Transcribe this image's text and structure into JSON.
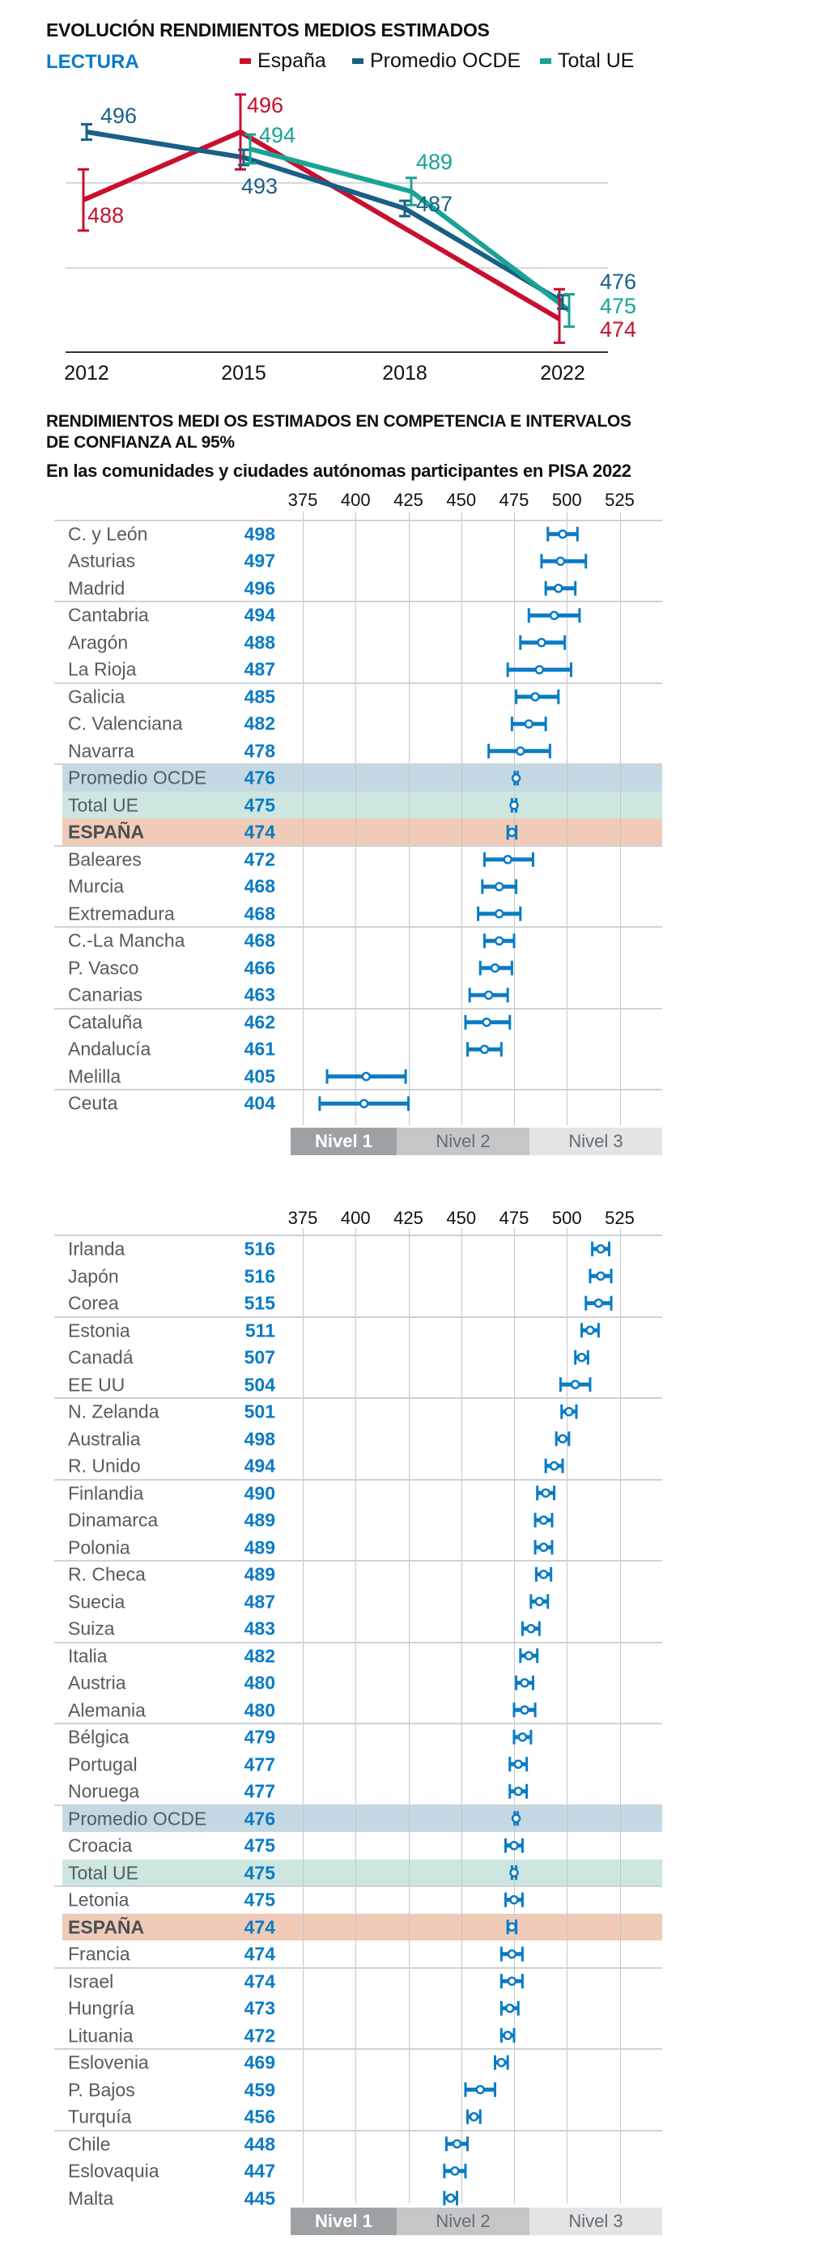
{
  "colors": {
    "spain": "#c8102e",
    "ocde": "#1a5f86",
    "ue": "#1aa394",
    "value_blue": "#0a7cc4",
    "band_ocde": "#c5d9e4",
    "band_ue": "#cde6e0",
    "band_spain": "#f0cbb8"
  },
  "levels": [
    "Nivel 1",
    "Nivel 2",
    "Nivel 3"
  ],
  "chart_data": [
    {
      "type": "line",
      "title": "EVOLUCIÓN RENDIMIENTOS MEDIOS ESTIMADOS",
      "subtitle": "LECTURA",
      "x": [
        "2012",
        "2015",
        "2018",
        "2022"
      ],
      "ylim": [
        470,
        500
      ],
      "gridlines": [
        480,
        490
      ],
      "legend": [
        "España",
        "Promedio OCDE",
        "Total UE"
      ],
      "legend_position": "top",
      "series": [
        {
          "name": "España",
          "values": [
            488,
            496,
            null,
            474
          ],
          "ci": [
            [
              484.4,
              491.6
            ],
            [
              491.6,
              500.4
            ],
            null,
            [
              471.2,
              477.5
            ]
          ],
          "labels": [
            "488",
            "496",
            null,
            "474"
          ]
        },
        {
          "name": "Promedio OCDE",
          "values": [
            496,
            493,
            487,
            476
          ],
          "ci": [
            [
              495.1,
              496.9
            ],
            [
              492.1,
              493.9
            ],
            [
              486.1,
              487.9
            ],
            [
              475.2,
              476.8
            ]
          ],
          "labels": [
            "496",
            "493",
            "487",
            "476"
          ]
        },
        {
          "name": "Total UE",
          "values": [
            null,
            494,
            489,
            475
          ],
          "ci": [
            null,
            [
              492.3,
              495.7
            ],
            [
              487.4,
              490.6
            ],
            [
              473.1,
              476.9
            ]
          ],
          "labels": [
            null,
            "494",
            "489",
            "475"
          ]
        }
      ]
    },
    {
      "type": "dot-interval",
      "title_lines": [
        "RENDIMIENTOS MEDI OS ESTIMADOS EN COMPETENCIA E INTERVALOS",
        "DE CONFIANZA AL 95%"
      ],
      "subtitle": "En las comunidades y ciudades autónomas participantes en PISA 2022",
      "xticks": [
        "375",
        "400",
        "425",
        "450",
        "475",
        "500",
        "525"
      ],
      "xlim": [
        375,
        545
      ],
      "rows": [
        {
          "label": "C. y León",
          "value": 498,
          "ci": [
            491,
            505
          ]
        },
        {
          "label": "Asturias",
          "value": 497,
          "ci": [
            488,
            509
          ]
        },
        {
          "label": "Madrid",
          "value": 496,
          "ci": [
            490,
            504
          ]
        },
        {
          "label": "Cantabria",
          "value": 494,
          "ci": [
            482,
            506
          ]
        },
        {
          "label": "Aragón",
          "value": 488,
          "ci": [
            478,
            499
          ]
        },
        {
          "label": "La Rioja",
          "value": 487,
          "ci": [
            472,
            502
          ]
        },
        {
          "label": "Galicia",
          "value": 485,
          "ci": [
            476,
            496
          ]
        },
        {
          "label": "C. Valenciana",
          "value": 482,
          "ci": [
            474,
            490
          ]
        },
        {
          "label": "Navarra",
          "value": 478,
          "ci": [
            463,
            492
          ]
        },
        {
          "label": "Promedio OCDE",
          "value": 476,
          "ci": [
            475.3,
            476.7
          ],
          "highlight": "ocde"
        },
        {
          "label": "Total UE",
          "value": 475,
          "ci": [
            474,
            476
          ],
          "highlight": "ue"
        },
        {
          "label": "ESPAÑA",
          "value": 474,
          "ci": [
            472,
            476
          ],
          "highlight": "spain"
        },
        {
          "label": "Baleares",
          "value": 472,
          "ci": [
            461,
            484
          ]
        },
        {
          "label": "Murcia",
          "value": 468,
          "ci": [
            460,
            476
          ]
        },
        {
          "label": "Extremadura",
          "value": 468,
          "ci": [
            458,
            478
          ]
        },
        {
          "label": "C.-La Mancha",
          "value": 468,
          "ci": [
            461,
            475
          ]
        },
        {
          "label": "P. Vasco",
          "value": 466,
          "ci": [
            459,
            474
          ]
        },
        {
          "label": "Canarias",
          "value": 463,
          "ci": [
            454,
            472
          ]
        },
        {
          "label": "Cataluña",
          "value": 462,
          "ci": [
            452,
            473
          ]
        },
        {
          "label": "Andalucía",
          "value": 461,
          "ci": [
            453,
            469
          ]
        },
        {
          "label": "Melilla",
          "value": 405,
          "ci": [
            386.5,
            423.7
          ]
        },
        {
          "label": "Ceuta",
          "value": 404,
          "ci": [
            383,
            425
          ]
        }
      ]
    },
    {
      "type": "dot-interval",
      "xticks": [
        "375",
        "400",
        "425",
        "450",
        "475",
        "500",
        "525"
      ],
      "xlim": [
        375,
        545
      ],
      "rows": [
        {
          "label": "Irlanda",
          "value": 516,
          "ci": [
            512,
            520
          ]
        },
        {
          "label": "Japón",
          "value": 516,
          "ci": [
            511,
            521
          ]
        },
        {
          "label": "Corea",
          "value": 515,
          "ci": [
            509,
            521
          ]
        },
        {
          "label": "Estonia",
          "value": 511,
          "ci": [
            507,
            515
          ]
        },
        {
          "label": "Canadá",
          "value": 507,
          "ci": [
            504,
            510
          ]
        },
        {
          "label": "EE UU",
          "value": 504,
          "ci": [
            497,
            511
          ]
        },
        {
          "label": "N. Zelanda",
          "value": 501,
          "ci": [
            497.5,
            504.5
          ]
        },
        {
          "label": "Australia",
          "value": 498,
          "ci": [
            495,
            501
          ]
        },
        {
          "label": "R. Unido",
          "value": 494,
          "ci": [
            490,
            498
          ]
        },
        {
          "label": "Finlandia",
          "value": 490,
          "ci": [
            486,
            494
          ]
        },
        {
          "label": "Dinamarca",
          "value": 489,
          "ci": [
            485,
            493
          ]
        },
        {
          "label": "Polonia",
          "value": 489,
          "ci": [
            485,
            493
          ]
        },
        {
          "label": "R. Checa",
          "value": 489,
          "ci": [
            485.5,
            492.5
          ]
        },
        {
          "label": "Suecia",
          "value": 487,
          "ci": [
            483,
            491
          ]
        },
        {
          "label": "Suiza",
          "value": 483,
          "ci": [
            479,
            487
          ]
        },
        {
          "label": "Italia",
          "value": 482,
          "ci": [
            478,
            486
          ]
        },
        {
          "label": "Austria",
          "value": 480,
          "ci": [
            476,
            484
          ]
        },
        {
          "label": "Alemania",
          "value": 480,
          "ci": [
            475,
            485
          ]
        },
        {
          "label": "Bélgica",
          "value": 479,
          "ci": [
            475,
            483
          ]
        },
        {
          "label": "Portugal",
          "value": 477,
          "ci": [
            473,
            481
          ]
        },
        {
          "label": "Noruega",
          "value": 477,
          "ci": [
            473,
            481
          ]
        },
        {
          "label": "Promedio OCDE",
          "value": 476,
          "ci": [
            475.3,
            476.7
          ],
          "highlight": "ocde"
        },
        {
          "label": "Croacia",
          "value": 475,
          "ci": [
            471,
            479
          ]
        },
        {
          "label": "Total UE",
          "value": 475,
          "ci": [
            474,
            476
          ],
          "highlight": "ue"
        },
        {
          "label": "Letonia",
          "value": 475,
          "ci": [
            471,
            479
          ]
        },
        {
          "label": "ESPAÑA",
          "value": 474,
          "ci": [
            472,
            476
          ],
          "highlight": "spain"
        },
        {
          "label": "Francia",
          "value": 474,
          "ci": [
            469,
            479
          ]
        },
        {
          "label": "Israel",
          "value": 474,
          "ci": [
            469,
            479
          ]
        },
        {
          "label": "Hungría",
          "value": 473,
          "ci": [
            469,
            477
          ]
        },
        {
          "label": "Lituania",
          "value": 472,
          "ci": [
            469,
            475
          ]
        },
        {
          "label": "Eslovenia",
          "value": 469,
          "ci": [
            466,
            472
          ]
        },
        {
          "label": "P. Bajos",
          "value": 459,
          "ci": [
            452,
            466
          ]
        },
        {
          "label": "Turquía",
          "value": 456,
          "ci": [
            453,
            459
          ]
        },
        {
          "label": "Chile",
          "value": 448,
          "ci": [
            443,
            453
          ]
        },
        {
          "label": "Eslovaquia",
          "value": 447,
          "ci": [
            442,
            452
          ]
        },
        {
          "label": "Malta",
          "value": 445,
          "ci": [
            442,
            448
          ]
        }
      ]
    }
  ]
}
